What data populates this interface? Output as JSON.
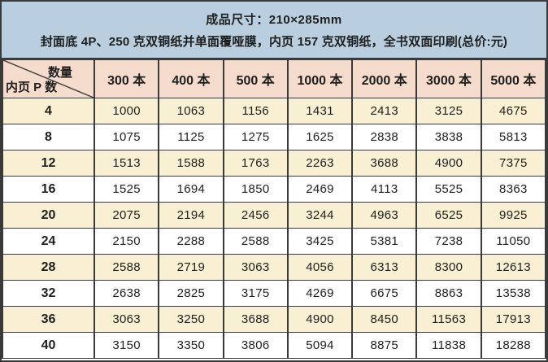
{
  "colors": {
    "header_bg": "#b9cfe0",
    "column_header_bg": "#f5dbcc",
    "stripe_bg": "#f9efd2",
    "row_bg": "#ffffff",
    "border": "#3a3a3a",
    "text": "#1e1e1e"
  },
  "title": {
    "line1": "成品尺寸：210×285mm",
    "line2": "封面底 4P、250 克双铜纸并单面覆哑膜，内页 157 克双铜纸，全书双面印刷(总价:元)"
  },
  "table": {
    "corner": {
      "quantity_label": "数量",
      "pages_label": "内页 P 数"
    },
    "columns": [
      "300 本",
      "400 本",
      "500 本",
      "1000 本",
      "2000 本",
      "3000 本",
      "5000 本"
    ],
    "rows": [
      {
        "pages": "4",
        "values": [
          "1000",
          "1063",
          "1156",
          "1431",
          "2413",
          "3125",
          "4675"
        ]
      },
      {
        "pages": "8",
        "values": [
          "1075",
          "1125",
          "1275",
          "1625",
          "2838",
          "3838",
          "5813"
        ]
      },
      {
        "pages": "12",
        "values": [
          "1513",
          "1588",
          "1763",
          "2263",
          "3688",
          "4900",
          "7375"
        ]
      },
      {
        "pages": "16",
        "values": [
          "1525",
          "1694",
          "1850",
          "2469",
          "4113",
          "5525",
          "8363"
        ]
      },
      {
        "pages": "20",
        "values": [
          "2075",
          "2194",
          "2456",
          "3244",
          "4963",
          "6525",
          "9925"
        ]
      },
      {
        "pages": "24",
        "values": [
          "2150",
          "2288",
          "2588",
          "3425",
          "5381",
          "7238",
          "11050"
        ]
      },
      {
        "pages": "28",
        "values": [
          "2588",
          "2719",
          "3063",
          "4056",
          "6313",
          "8300",
          "12613"
        ]
      },
      {
        "pages": "32",
        "values": [
          "2638",
          "2825",
          "3175",
          "4269",
          "6675",
          "8863",
          "13538"
        ]
      },
      {
        "pages": "36",
        "values": [
          "3063",
          "3250",
          "3688",
          "4900",
          "8450",
          "11563",
          "17913"
        ]
      },
      {
        "pages": "40",
        "values": [
          "3150",
          "3350",
          "3806",
          "5094",
          "8875",
          "11838",
          "18288"
        ]
      }
    ]
  }
}
